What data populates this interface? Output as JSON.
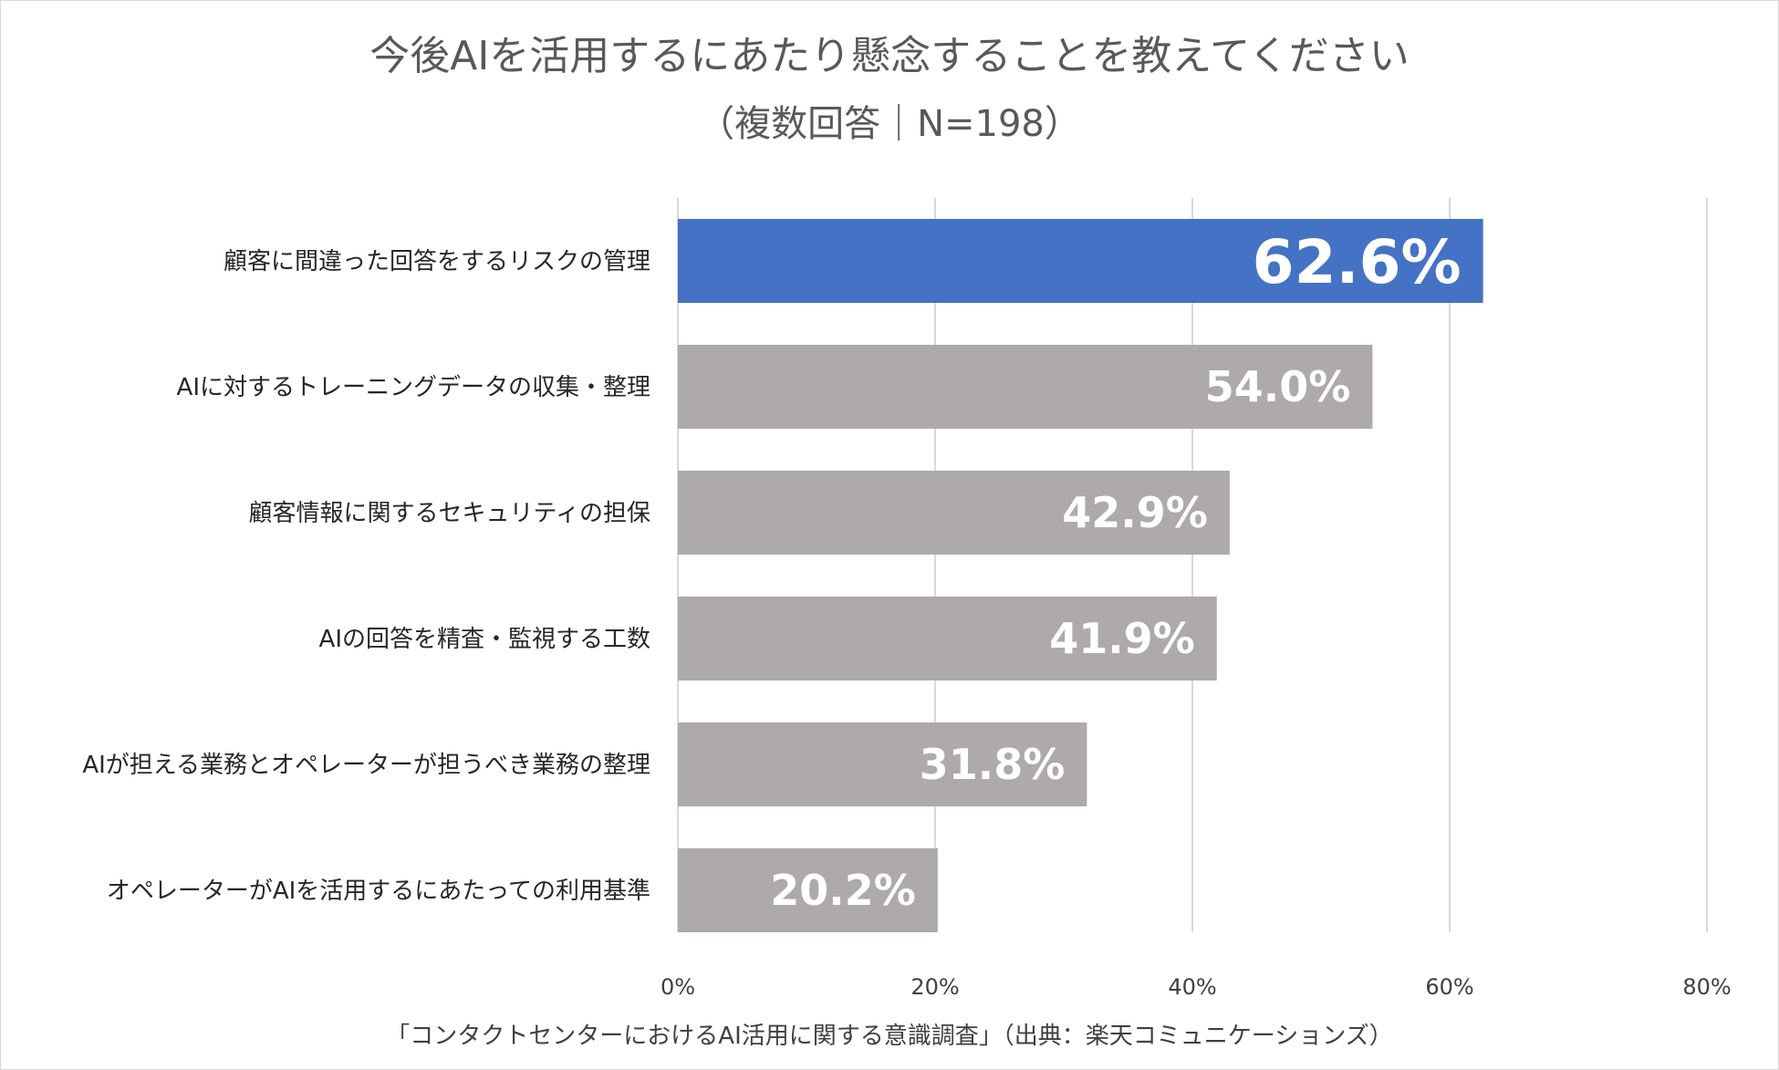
{
  "chart_data": {
    "type": "bar",
    "orientation": "horizontal",
    "title": "今後AIを活用するにあたり懸念することを教えてください",
    "subtitle": "（複数回答｜N=198）",
    "categories": [
      "顧客に間違った回答をするリスクの管理",
      "AIに対するトレーニングデータの収集・整理",
      "顧客情報に関するセキュリティの担保",
      "AIの回答を精査・監視する工数",
      "AIが担える業務とオペレーターが担うべき業務の整理",
      "オペレーターがAIを活用するにあたっての利用基準"
    ],
    "values": [
      62.6,
      54.0,
      42.9,
      41.9,
      31.8,
      20.2
    ],
    "value_labels": [
      "62.6%",
      "54.0%",
      "42.9%",
      "41.9%",
      "31.8%",
      "20.2%"
    ],
    "xlim": [
      0,
      80
    ],
    "xticks": [
      0,
      20,
      40,
      60,
      80
    ],
    "xtick_labels": [
      "0%",
      "20%",
      "40%",
      "60%",
      "80%"
    ],
    "grid": true,
    "highlight_color": "#4472c4",
    "bar_color": "#aeaaaa",
    "source": "「コンタクトセンターにおけるAI活用に関する意識調査」（出典：楽天コミュニケーションズ）"
  }
}
